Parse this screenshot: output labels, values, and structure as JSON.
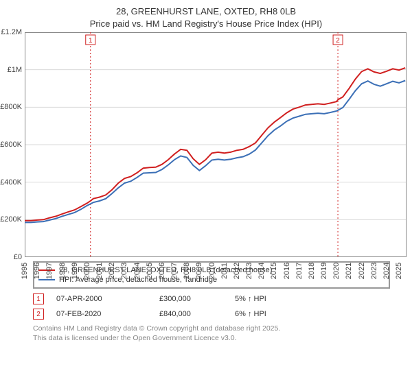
{
  "title_line1": "28, GREENHURST LANE, OXTED, RH8 0LB",
  "title_line2": "Price paid vs. HM Land Registry's House Price Index (HPI)",
  "chart": {
    "type": "line",
    "background_color": "#ffffff",
    "grid_color": "#d9d9d9",
    "axis_color": "#888888",
    "xlim": [
      1995,
      2025.6
    ],
    "ylim": [
      0,
      1200000
    ],
    "yticks": [
      0,
      200000,
      400000,
      600000,
      800000,
      1000000,
      1200000
    ],
    "ytick_labels": [
      "£0",
      "£200K",
      "£400K",
      "£600K",
      "£800K",
      "£1M",
      "£1.2M"
    ],
    "xticks": [
      1995,
      1996,
      1997,
      1998,
      1999,
      2000,
      2001,
      2002,
      2003,
      2004,
      2005,
      2006,
      2007,
      2008,
      2009,
      2010,
      2011,
      2012,
      2013,
      2014,
      2015,
      2016,
      2017,
      2018,
      2019,
      2020,
      2021,
      2022,
      2023,
      2024,
      2025
    ],
    "title_fontsize": 13,
    "label_fontsize": 11,
    "line_width": 2,
    "series": [
      {
        "name": "28, GREENHURST LANE, OXTED, RH8 0LB (detached house)",
        "color": "#d01f1f",
        "points": [
          [
            1995.0,
            195000
          ],
          [
            1995.5,
            195000
          ],
          [
            1996.0,
            198000
          ],
          [
            1996.5,
            200000
          ],
          [
            1997.0,
            210000
          ],
          [
            1997.5,
            218000
          ],
          [
            1998.0,
            230000
          ],
          [
            1998.5,
            242000
          ],
          [
            1999.0,
            252000
          ],
          [
            1999.5,
            270000
          ],
          [
            2000.0,
            288000
          ],
          [
            2000.27,
            300000
          ],
          [
            2000.5,
            312000
          ],
          [
            2001.0,
            320000
          ],
          [
            2001.5,
            332000
          ],
          [
            2002.0,
            360000
          ],
          [
            2002.5,
            395000
          ],
          [
            2003.0,
            420000
          ],
          [
            2003.5,
            430000
          ],
          [
            2004.0,
            450000
          ],
          [
            2004.5,
            475000
          ],
          [
            2005.0,
            478000
          ],
          [
            2005.5,
            480000
          ],
          [
            2006.0,
            495000
          ],
          [
            2006.5,
            520000
          ],
          [
            2007.0,
            550000
          ],
          [
            2007.5,
            575000
          ],
          [
            2008.0,
            570000
          ],
          [
            2008.5,
            525000
          ],
          [
            2009.0,
            495000
          ],
          [
            2009.5,
            520000
          ],
          [
            2010.0,
            555000
          ],
          [
            2010.5,
            560000
          ],
          [
            2011.0,
            555000
          ],
          [
            2011.5,
            560000
          ],
          [
            2012.0,
            570000
          ],
          [
            2012.5,
            575000
          ],
          [
            2013.0,
            590000
          ],
          [
            2013.5,
            610000
          ],
          [
            2014.0,
            650000
          ],
          [
            2014.5,
            690000
          ],
          [
            2015.0,
            720000
          ],
          [
            2015.5,
            745000
          ],
          [
            2016.0,
            770000
          ],
          [
            2016.5,
            790000
          ],
          [
            2017.0,
            800000
          ],
          [
            2017.5,
            812000
          ],
          [
            2018.0,
            815000
          ],
          [
            2018.5,
            818000
          ],
          [
            2019.0,
            815000
          ],
          [
            2019.5,
            822000
          ],
          [
            2020.0,
            830000
          ],
          [
            2020.1,
            840000
          ],
          [
            2020.5,
            855000
          ],
          [
            2021.0,
            900000
          ],
          [
            2021.5,
            950000
          ],
          [
            2022.0,
            990000
          ],
          [
            2022.5,
            1005000
          ],
          [
            2023.0,
            988000
          ],
          [
            2023.5,
            980000
          ],
          [
            2024.0,
            992000
          ],
          [
            2024.5,
            1005000
          ],
          [
            2025.0,
            998000
          ],
          [
            2025.5,
            1010000
          ]
        ]
      },
      {
        "name": "HPI: Average price, detached house, Tandridge",
        "color": "#3b6fb6",
        "points": [
          [
            1995.0,
            185000
          ],
          [
            1995.5,
            185000
          ],
          [
            1996.0,
            188000
          ],
          [
            1996.5,
            190000
          ],
          [
            1997.0,
            198000
          ],
          [
            1997.5,
            206000
          ],
          [
            1998.0,
            218000
          ],
          [
            1998.5,
            228000
          ],
          [
            1999.0,
            238000
          ],
          [
            1999.5,
            255000
          ],
          [
            2000.0,
            275000
          ],
          [
            2000.5,
            292000
          ],
          [
            2001.0,
            300000
          ],
          [
            2001.5,
            312000
          ],
          [
            2002.0,
            340000
          ],
          [
            2002.5,
            370000
          ],
          [
            2003.0,
            395000
          ],
          [
            2003.5,
            405000
          ],
          [
            2004.0,
            425000
          ],
          [
            2004.5,
            448000
          ],
          [
            2005.0,
            450000
          ],
          [
            2005.5,
            452000
          ],
          [
            2006.0,
            468000
          ],
          [
            2006.5,
            492000
          ],
          [
            2007.0,
            520000
          ],
          [
            2007.5,
            540000
          ],
          [
            2008.0,
            532000
          ],
          [
            2008.5,
            490000
          ],
          [
            2009.0,
            462000
          ],
          [
            2009.5,
            488000
          ],
          [
            2010.0,
            518000
          ],
          [
            2010.5,
            522000
          ],
          [
            2011.0,
            518000
          ],
          [
            2011.5,
            522000
          ],
          [
            2012.0,
            530000
          ],
          [
            2012.5,
            536000
          ],
          [
            2013.0,
            550000
          ],
          [
            2013.5,
            572000
          ],
          [
            2014.0,
            610000
          ],
          [
            2014.5,
            648000
          ],
          [
            2015.0,
            678000
          ],
          [
            2015.5,
            700000
          ],
          [
            2016.0,
            725000
          ],
          [
            2016.5,
            742000
          ],
          [
            2017.0,
            752000
          ],
          [
            2017.5,
            762000
          ],
          [
            2018.0,
            765000
          ],
          [
            2018.5,
            768000
          ],
          [
            2019.0,
            765000
          ],
          [
            2019.5,
            772000
          ],
          [
            2020.0,
            780000
          ],
          [
            2020.5,
            798000
          ],
          [
            2021.0,
            842000
          ],
          [
            2021.5,
            888000
          ],
          [
            2022.0,
            925000
          ],
          [
            2022.5,
            940000
          ],
          [
            2023.0,
            922000
          ],
          [
            2023.5,
            912000
          ],
          [
            2024.0,
            925000
          ],
          [
            2024.5,
            938000
          ],
          [
            2025.0,
            930000
          ],
          [
            2025.5,
            942000
          ]
        ]
      }
    ],
    "markers": [
      {
        "id": "1",
        "x": 2000.27,
        "color": "#d01f1f"
      },
      {
        "id": "2",
        "x": 2020.1,
        "color": "#d01f1f"
      }
    ]
  },
  "legend": {
    "border_color": "#999999"
  },
  "events": [
    {
      "id": "1",
      "color": "#d01f1f",
      "date": "07-APR-2000",
      "price": "£300,000",
      "delta": "5% ↑ HPI"
    },
    {
      "id": "2",
      "color": "#d01f1f",
      "date": "07-FEB-2020",
      "price": "£840,000",
      "delta": "6% ↑ HPI"
    }
  ],
  "attribution_line1": "Contains HM Land Registry data © Crown copyright and database right 2025.",
  "attribution_line2": "This data is licensed under the Open Government Licence v3.0."
}
